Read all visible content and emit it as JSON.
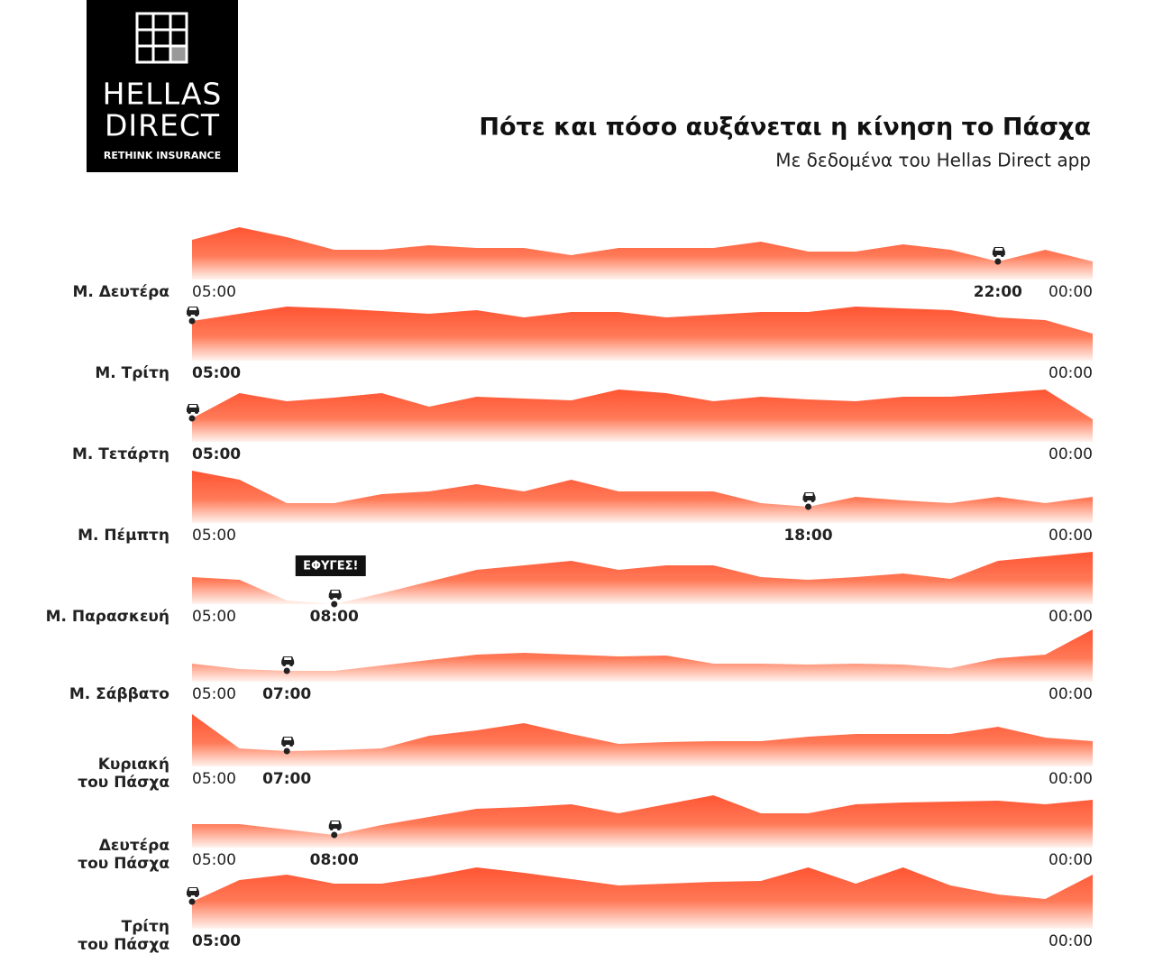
{
  "header": {
    "brand": [
      "HELLAS",
      "DIRECT"
    ],
    "tagline": "RETHINK INSURANCE",
    "title": "Πότε και πόσο αυξάνεται η κίνηση το Πάσχα",
    "subtitle": "Με δεδομένα του Hellas Direct app"
  },
  "chart_data": [
    {
      "type": "area",
      "title": [
        "Μ. Δευτέρα"
      ],
      "color": "#ff5533",
      "ylim": [
        0,
        70
      ],
      "highlight": 17,
      "categories": [
        "05:00",
        null,
        null,
        null,
        null,
        null,
        null,
        null,
        null,
        null,
        null,
        null,
        null,
        null,
        null,
        null,
        null,
        "22:00",
        null,
        "00:00"
      ],
      "values": [
        44,
        58,
        47,
        33,
        33,
        38,
        35,
        35,
        27,
        35,
        35,
        35,
        42,
        31,
        31,
        39,
        33,
        20,
        33,
        20
      ]
    },
    {
      "type": "area",
      "title": [
        "Μ. Τρίτη"
      ],
      "color": "#ff5533",
      "ylim": [
        0,
        70
      ],
      "highlight": 0,
      "categories": [
        "05:00",
        null,
        null,
        null,
        null,
        null,
        null,
        null,
        null,
        null,
        null,
        null,
        null,
        null,
        null,
        null,
        null,
        null,
        null,
        "00:00"
      ],
      "values": [
        44,
        52,
        60,
        58,
        55,
        52,
        56,
        48,
        54,
        54,
        48,
        51,
        54,
        54,
        60,
        58,
        56,
        48,
        45,
        30
      ]
    },
    {
      "type": "area",
      "title": [
        "Μ. Τετάρτη"
      ],
      "color": "#ff5533",
      "ylim": [
        0,
        70
      ],
      "highlight": 0,
      "categories": [
        "05:00",
        null,
        null,
        null,
        null,
        null,
        null,
        null,
        null,
        null,
        null,
        null,
        null,
        null,
        null,
        null,
        null,
        null,
        null,
        "00:00"
      ],
      "values": [
        26,
        54,
        45,
        49,
        54,
        39,
        50,
        48,
        46,
        58,
        54,
        45,
        50,
        47,
        45,
        50,
        50,
        54,
        58,
        25
      ]
    },
    {
      "type": "area",
      "title": [
        "Μ. Πέμπτη"
      ],
      "color": "#ff5533",
      "ylim": [
        0,
        70
      ],
      "highlight": 13,
      "categories": [
        "05:00",
        null,
        null,
        null,
        null,
        null,
        null,
        null,
        null,
        null,
        null,
        null,
        null,
        "18:00",
        null,
        null,
        null,
        null,
        null,
        "00:00"
      ],
      "values": [
        58,
        48,
        22,
        22,
        32,
        35,
        43,
        35,
        48,
        35,
        35,
        35,
        22,
        18,
        29,
        25,
        22,
        29,
        22,
        29
      ]
    },
    {
      "type": "area",
      "title": [
        "Μ. Παρασκευή"
      ],
      "color": "#ff5533",
      "ylim": [
        0,
        70
      ],
      "highlight": 3,
      "annotation": "ΕΦΥΓΕΣ!",
      "categories": [
        "05:00",
        null,
        null,
        "08:00",
        null,
        null,
        null,
        null,
        null,
        null,
        null,
        null,
        null,
        null,
        null,
        null,
        null,
        null,
        null,
        "00:00"
      ],
      "values": [
        30,
        27,
        4,
        0,
        12,
        25,
        38,
        43,
        48,
        38,
        43,
        43,
        30,
        27,
        30,
        34,
        28,
        48,
        53,
        58
      ]
    },
    {
      "type": "area",
      "title": [
        "Μ. Σάββατο"
      ],
      "color": "#ff5533",
      "ylim": [
        0,
        70
      ],
      "highlight": 2,
      "categories": [
        "05:00",
        null,
        "07:00",
        null,
        null,
        null,
        null,
        null,
        null,
        null,
        null,
        null,
        null,
        null,
        null,
        null,
        null,
        null,
        null,
        "00:00"
      ],
      "values": [
        20,
        14,
        12,
        12,
        18,
        24,
        30,
        32,
        30,
        28,
        29,
        20,
        20,
        19,
        20,
        19,
        15,
        26,
        30,
        58
      ]
    },
    {
      "type": "area",
      "title": [
        "Κυριακή",
        "του Πάσχα"
      ],
      "color": "#ff5533",
      "ylim": [
        0,
        70
      ],
      "highlight": 2,
      "categories": [
        "05:00",
        null,
        "07:00",
        null,
        null,
        null,
        null,
        null,
        null,
        null,
        null,
        null,
        null,
        null,
        null,
        null,
        null,
        null,
        null,
        "00:00"
      ],
      "values": [
        58,
        20,
        17,
        18,
        20,
        34,
        40,
        48,
        36,
        25,
        27,
        28,
        28,
        33,
        36,
        36,
        36,
        44,
        32,
        28
      ]
    },
    {
      "type": "area",
      "title": [
        "Δευτέρα",
        "του Πάσχα"
      ],
      "color": "#ff5533",
      "ylim": [
        0,
        70
      ],
      "highlight": 3,
      "categories": [
        "05:00",
        null,
        null,
        "08:00",
        null,
        null,
        null,
        null,
        null,
        null,
        null,
        null,
        null,
        null,
        null,
        null,
        null,
        null,
        null,
        "00:00"
      ],
      "values": [
        26,
        26,
        20,
        14,
        25,
        34,
        43,
        45,
        48,
        38,
        48,
        58,
        38,
        38,
        48,
        50,
        51,
        52,
        48,
        53
      ]
    },
    {
      "type": "area",
      "title": [
        "Τρίτη",
        "του Πάσχα"
      ],
      "color": "#ff5533",
      "ylim": [
        0,
        70
      ],
      "highlight": 0,
      "categories": [
        "05:00",
        null,
        null,
        null,
        null,
        null,
        null,
        null,
        null,
        null,
        null,
        null,
        null,
        null,
        null,
        null,
        null,
        null,
        null,
        "00:00"
      ],
      "values": [
        30,
        54,
        60,
        50,
        50,
        58,
        68,
        62,
        55,
        48,
        50,
        52,
        53,
        68,
        50,
        68,
        48,
        38,
        33,
        60
      ]
    }
  ]
}
